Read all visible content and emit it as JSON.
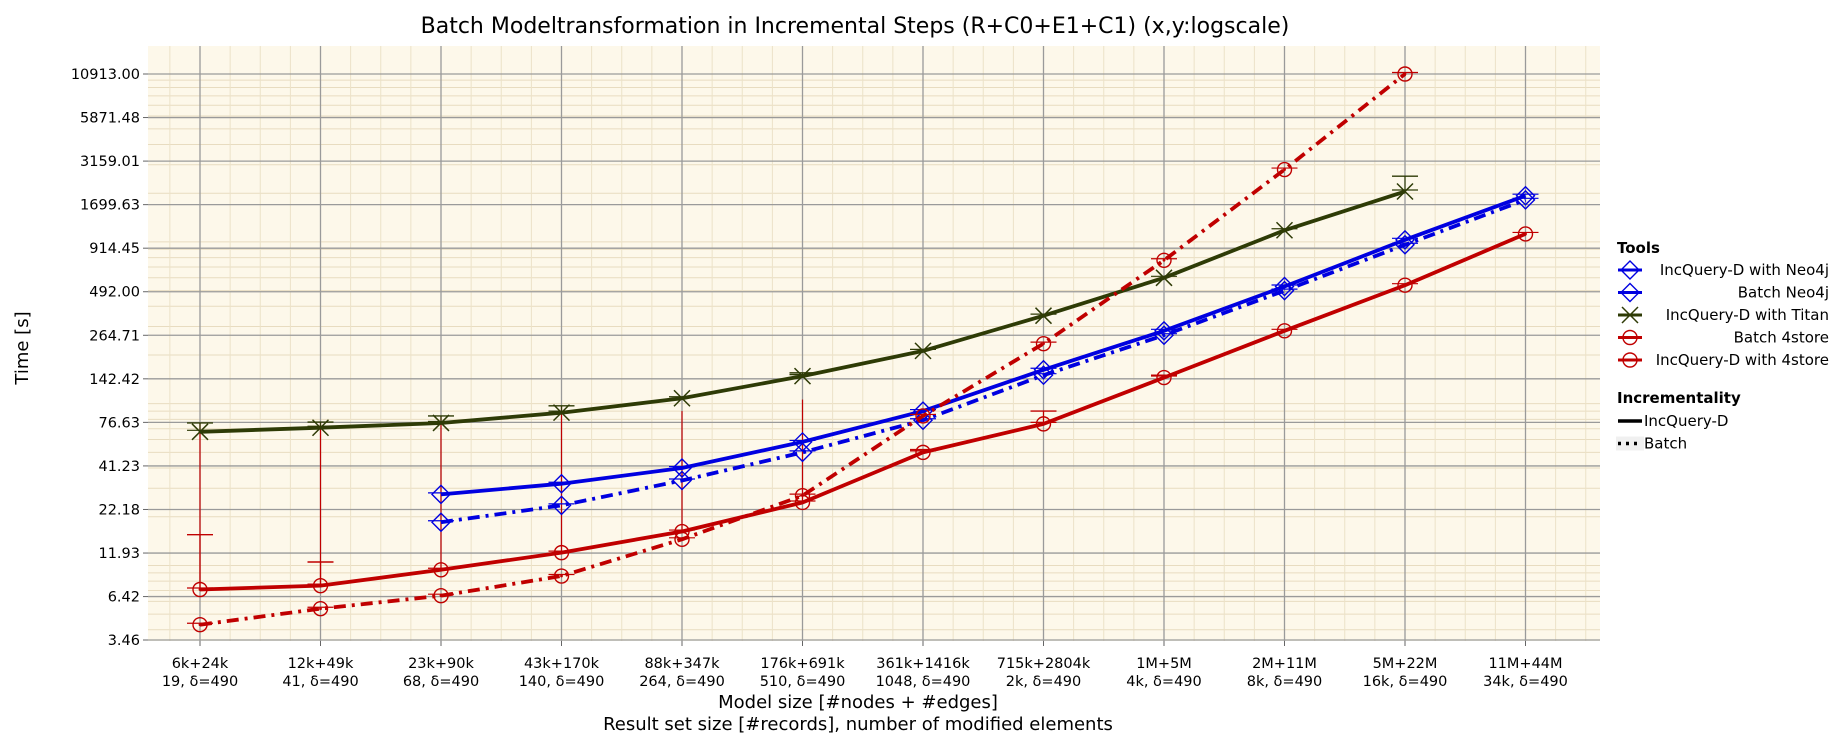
{
  "chart_data": {
    "type": "line",
    "title": "Batch Modeltransformation in Incremental Steps (R+C0+E1+C1) (x,y:logscale)",
    "xlabel": "Model size [#nodes + #edges]",
    "xlabel2": "Result set size [#records], number of modified elements",
    "ylabel": "Time [s]",
    "ylim": [
      3.0,
      14000
    ],
    "ytick_values": [
      3.46,
      6.42,
      11.93,
      22.18,
      41.23,
      76.63,
      142.42,
      264.71,
      492.0,
      914.45,
      1699.63,
      3159.01,
      5871.48,
      10913.0
    ],
    "ytick_labels": [
      "3.46",
      "6.42",
      "11.93",
      "22.18",
      "41.23",
      "76.63",
      "142.42",
      "264.71",
      "492.00",
      "914.45",
      "1699.63",
      "3159.01",
      "5871.48",
      "10913.00"
    ],
    "categories": [
      "6k+24k",
      "12k+49k",
      "23k+90k",
      "43k+170k",
      "88k+347k",
      "176k+691k",
      "361k+1416k",
      "715k+2804k",
      "1M+5M",
      "2M+11M",
      "5M+22M",
      "11M+44M"
    ],
    "categories2": [
      "19, δ=490",
      "41, δ=490",
      "68, δ=490",
      "140, δ=490",
      "264, δ=490",
      "510, δ=490",
      "1048, δ=490",
      "2k, δ=490",
      "4k, δ=490",
      "8k, δ=490",
      "16k, δ=490",
      "34k, δ=490"
    ],
    "series": [
      {
        "name": "IncQuery-D with Neo4j",
        "tool": "Neo4j",
        "incrementality": "IncQuery-D",
        "color": "#0000e0",
        "marker": "diamond",
        "values": [
          null,
          null,
          27.5,
          32.0,
          40.0,
          58.0,
          90.0,
          162.0,
          282.0,
          530.0,
          1030.0,
          1930.0
        ],
        "err_low": [
          null,
          null,
          null,
          null,
          null,
          null,
          null,
          null,
          null,
          null,
          null,
          null
        ],
        "err_high": [
          null,
          null,
          null,
          null,
          null,
          null,
          null,
          null,
          null,
          null,
          null,
          null
        ]
      },
      {
        "name": "Batch Neo4j",
        "tool": "Neo4j",
        "incrementality": "Batch",
        "color": "#0000e0",
        "marker": "diamond",
        "values": [
          null,
          null,
          18.5,
          23.5,
          33.5,
          50.0,
          79.0,
          150.0,
          265.0,
          500.0,
          960.0,
          1820.0
        ],
        "err_low": [
          null,
          null,
          null,
          null,
          null,
          null,
          null,
          null,
          null,
          null,
          null,
          null
        ],
        "err_high": [
          null,
          null,
          null,
          null,
          null,
          null,
          null,
          null,
          null,
          null,
          null,
          null
        ]
      },
      {
        "name": "IncQuery-D with Titan",
        "tool": "Titan",
        "incrementality": "IncQuery-D",
        "color": "#2e3b06",
        "marker": "x",
        "values": [
          67.0,
          71.0,
          76.0,
          88.0,
          108.0,
          148.0,
          212.0,
          350.0,
          600.0,
          1180.0,
          2050.0,
          null
        ],
        "err_low": [
          null,
          null,
          null,
          null,
          null,
          null,
          null,
          null,
          null,
          null,
          null,
          null
        ],
        "err_high": [
          76.0,
          77.0,
          84.0,
          97.0,
          null,
          155.0,
          null,
          null,
          null,
          null,
          2550.0,
          null
        ]
      },
      {
        "name": "Batch 4store",
        "tool": "4store",
        "incrementality": "IncQuery-D",
        "color": "#c00000",
        "marker": "circle",
        "values": [
          7.1,
          7.5,
          9.4,
          12.0,
          16.2,
          24.5,
          50.0,
          75.0,
          145.0,
          282.0,
          540.0,
          1120.0
        ],
        "err_low": [
          null,
          null,
          null,
          null,
          null,
          null,
          null,
          null,
          null,
          null,
          null,
          null
        ],
        "err_high": [
          15.5,
          10.5,
          null,
          null,
          null,
          null,
          52.0,
          90.0,
          150.0,
          null,
          null,
          null
        ]
      },
      {
        "name": "IncQuery-D with 4store",
        "tool": "4store",
        "incrementality": "Batch",
        "color": "#c00000",
        "marker": "circle",
        "values": [
          4.3,
          5.4,
          6.5,
          8.6,
          14.5,
          27.0,
          84.0,
          235.0,
          770.0,
          2800.0,
          10913.0,
          null
        ],
        "err_low": [
          null,
          null,
          null,
          null,
          null,
          null,
          null,
          null,
          null,
          null,
          null,
          null
        ],
        "err_high": [
          null,
          null,
          null,
          null,
          null,
          null,
          null,
          null,
          null,
          null,
          null,
          null
        ]
      }
    ],
    "error_bars": [
      {
        "category": "6k+24k",
        "low": 7.1,
        "high": 76.0
      },
      {
        "category": "12k+49k",
        "low": 7.5,
        "high": 77.0
      },
      {
        "category": "23k+90k",
        "low": 9.4,
        "high": 84.0
      },
      {
        "category": "43k+170k",
        "low": 12.0,
        "high": 97.0
      },
      {
        "category": "88k+347k",
        "low": 16.2,
        "high": 90.0
      },
      {
        "category": "176k+691k",
        "low": 24.5,
        "high": 106.0
      }
    ],
    "legend": {
      "title": "Tools",
      "tools": [
        "IncQuery-D with Neo4j",
        "Batch Neo4j",
        "IncQuery-D with Titan",
        "Batch 4store",
        "IncQuery-D with 4store"
      ],
      "incrementality_title": "Incrementality",
      "incrementality": [
        "IncQuery-D",
        "Batch"
      ]
    },
    "grid": true,
    "legend_position": "right"
  }
}
